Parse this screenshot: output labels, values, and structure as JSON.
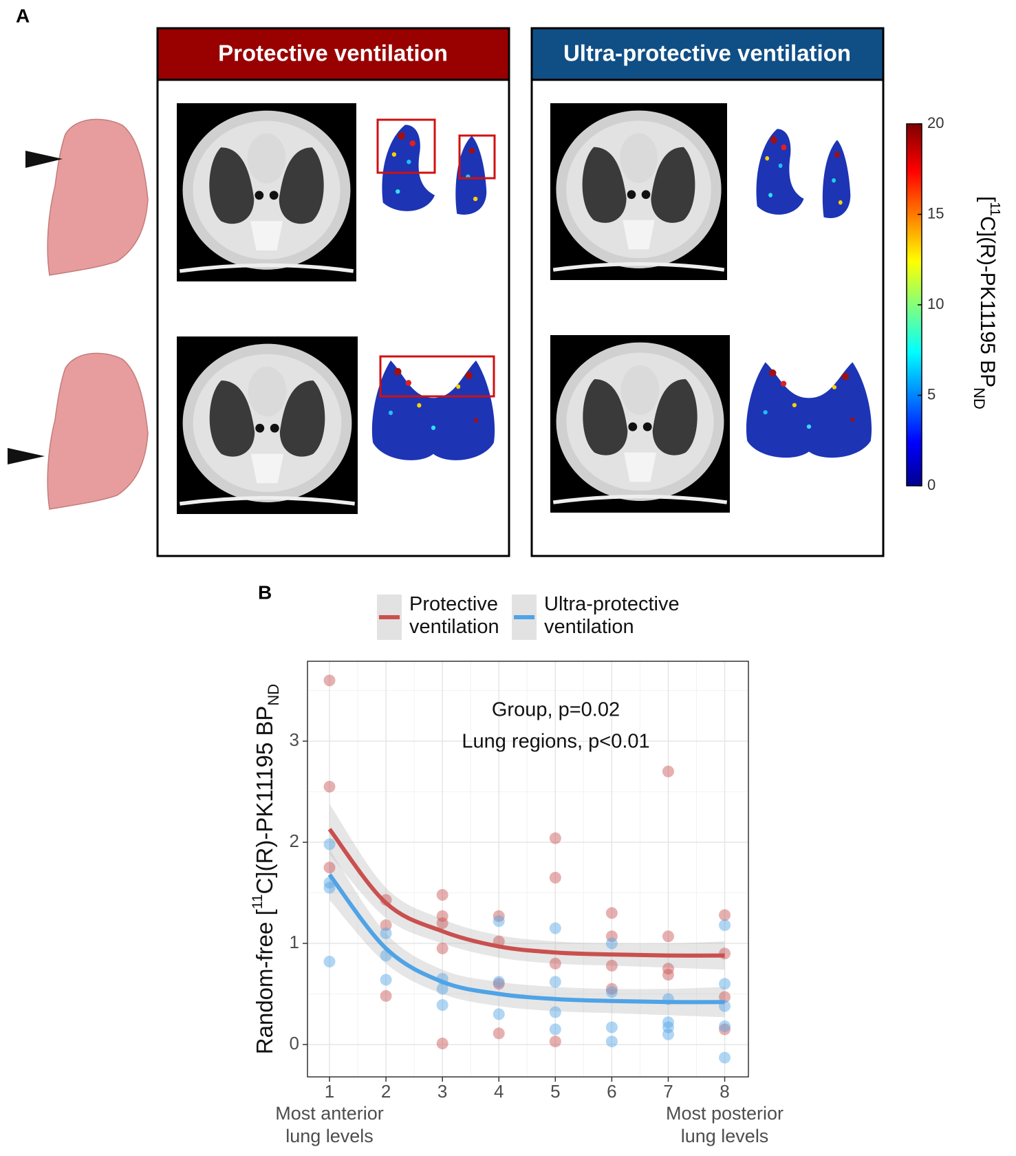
{
  "panel_a": {
    "label": "A",
    "headers": [
      "Protective ventilation",
      "Ultra-protective ventilation"
    ],
    "colorbar": {
      "lim": [
        0,
        20
      ],
      "ticks": [
        0,
        5,
        10,
        15,
        20
      ],
      "label": [
        "[",
        "11",
        "C](R)-PK11195  BP",
        "ND"
      ]
    }
  },
  "chart_data": {
    "type": "scatter",
    "panel_label": "B",
    "ylabel": [
      "Random-free [",
      "11",
      "C](R)-PK11195 BP",
      "ND"
    ],
    "annotations": [
      "Group, p=0.02",
      "Lung regions, p<0.01"
    ],
    "x_annotations": [
      {
        "x": 1,
        "lines": [
          "Most anterior",
          "lung levels"
        ]
      },
      {
        "x": 8,
        "lines": [
          "Most posterior",
          "lung levels"
        ]
      }
    ],
    "x": [
      1,
      2,
      3,
      4,
      5,
      6,
      7,
      8
    ],
    "xlim": [
      0.61,
      8.42
    ],
    "xticks": [
      1,
      2,
      3,
      4,
      5,
      6,
      7,
      8
    ],
    "xminor": [
      1.5,
      2.5,
      3.5,
      4.5,
      5.5,
      6.5,
      7.5
    ],
    "ylim": [
      -0.32,
      3.79
    ],
    "yticks": [
      0,
      1,
      2,
      3
    ],
    "yminor": [
      0.5,
      1.5,
      2.5,
      3.5
    ],
    "grid": true,
    "series": [
      {
        "name": "Protective ventilation",
        "color": "#c9504f",
        "values": [
          2.13,
          1.4,
          1.12,
          0.97,
          0.91,
          0.89,
          0.88,
          0.88
        ],
        "lower": [
          1.88,
          1.25,
          1.0,
          0.86,
          0.8,
          0.78,
          0.76,
          0.74
        ],
        "upper": [
          2.38,
          1.55,
          1.24,
          1.08,
          1.02,
          1.0,
          1.0,
          1.02
        ],
        "points_x": [
          1,
          1,
          1,
          2,
          2,
          2,
          3,
          3,
          3,
          3,
          3,
          4,
          4,
          4,
          4,
          5,
          5,
          5,
          5,
          6,
          6,
          6,
          6,
          7,
          7,
          7,
          7,
          8,
          8,
          8,
          8
        ],
        "points_y": [
          3.6,
          2.55,
          1.75,
          1.43,
          1.18,
          0.48,
          1.48,
          1.27,
          1.2,
          0.95,
          0.01,
          1.27,
          1.02,
          0.6,
          0.11,
          2.04,
          1.65,
          0.8,
          0.03,
          1.3,
          1.07,
          0.78,
          0.55,
          2.7,
          1.07,
          0.75,
          0.69,
          1.28,
          0.9,
          0.47,
          0.15
        ]
      },
      {
        "name": "Ultra-protective ventilation",
        "color": "#4fa3e6",
        "values": [
          1.68,
          0.95,
          0.62,
          0.5,
          0.45,
          0.43,
          0.42,
          0.42
        ],
        "lower": [
          1.43,
          0.8,
          0.5,
          0.38,
          0.33,
          0.31,
          0.29,
          0.27
        ],
        "upper": [
          1.93,
          1.1,
          0.74,
          0.62,
          0.57,
          0.55,
          0.55,
          0.57
        ],
        "points_x": [
          1,
          1,
          1,
          1,
          2,
          2,
          2,
          3,
          3,
          3,
          4,
          4,
          4,
          5,
          5,
          5,
          5,
          6,
          6,
          6,
          6,
          7,
          7,
          7,
          7,
          8,
          8,
          8,
          8,
          8
        ],
        "points_y": [
          1.98,
          1.6,
          1.55,
          0.82,
          1.1,
          0.88,
          0.64,
          0.65,
          0.55,
          0.39,
          1.22,
          0.62,
          0.3,
          1.15,
          0.62,
          0.32,
          0.15,
          1.0,
          0.52,
          0.17,
          0.03,
          0.45,
          0.22,
          0.17,
          0.1,
          1.18,
          0.6,
          0.38,
          0.18,
          -0.13
        ]
      }
    ]
  }
}
